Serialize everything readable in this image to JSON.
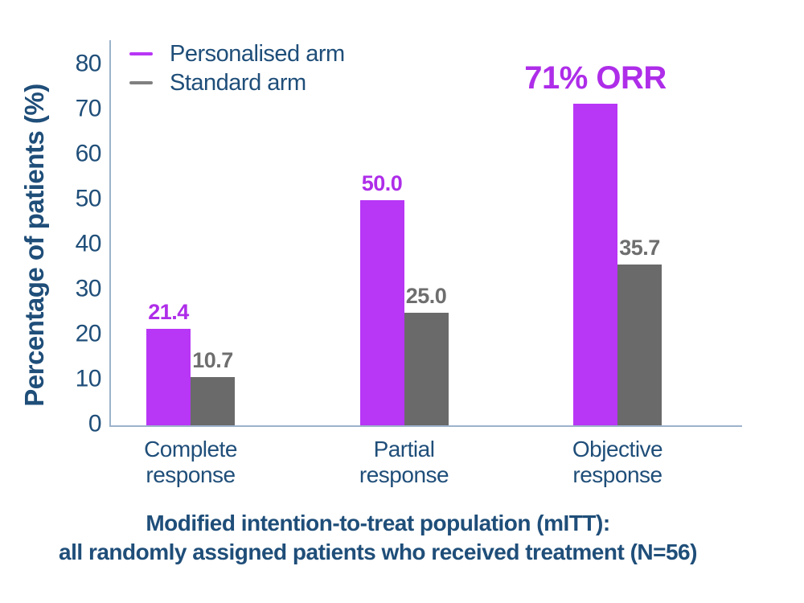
{
  "colors": {
    "navy": "#1F4E79",
    "magenta_bar": "#B836F6",
    "magenta_text": "#AE2DE9",
    "gray_bar": "#6A6A6A",
    "gray_text": "#6E6E6E",
    "legend_gray": "#808080",
    "axis_line": "#9DB2CB",
    "background": "#FFFFFF"
  },
  "chart_data": {
    "type": "bar",
    "title": "",
    "ylabel": "Percentage of patients (%)",
    "xlabel": "",
    "ylim": [
      0,
      80
    ],
    "yticks": [
      0,
      10,
      20,
      30,
      40,
      50,
      60,
      70,
      80
    ],
    "grid": false,
    "legend_position": "top-left",
    "categories": [
      "Complete\nresponse",
      "Partial\nresponse",
      "Objective\nresponse"
    ],
    "series": [
      {
        "name": "Personalised arm",
        "values": [
          21.4,
          50.0,
          71.4
        ],
        "labels": [
          "21.4",
          "50.0",
          ""
        ],
        "color_key": "magenta_bar",
        "label_color_key": "magenta_text"
      },
      {
        "name": "Standard arm",
        "values": [
          10.7,
          25.0,
          35.7
        ],
        "labels": [
          "10.7",
          "25.0",
          "35.7"
        ],
        "color_key": "gray_bar",
        "label_color_key": "gray_text"
      }
    ],
    "annotation": {
      "text": "71% ORR",
      "series_index": 0,
      "category_index": 2
    },
    "footnote_lines": [
      "Modified intention-to-treat population (mITT):",
      "all randomly assigned patients who received treatment (N=56)"
    ]
  }
}
